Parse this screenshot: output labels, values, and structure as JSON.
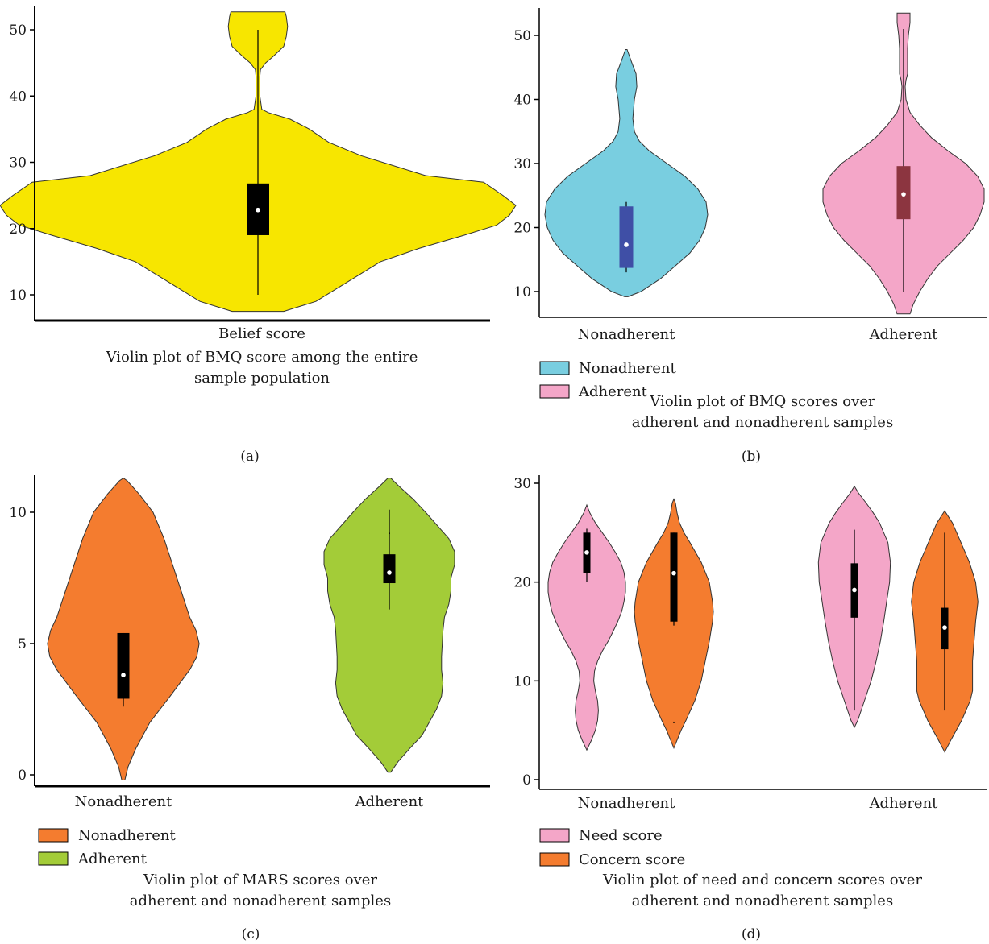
{
  "chart_data": [
    {
      "id": "a",
      "type": "violin",
      "panel_label": "(a)",
      "caption_lines": [
        "Violin plot of BMQ score among the entire",
        "sample population"
      ],
      "categories": [
        "Belief score"
      ],
      "y_ticks": [
        10,
        20,
        30,
        40,
        50
      ],
      "ylim": [
        6,
        55
      ],
      "legend": [],
      "series": [
        {
          "category": "Belief score",
          "color": "#f7e600",
          "box_color": "#000000",
          "profile": [
            [
              7.5,
              0.2
            ],
            [
              9,
              0.45
            ],
            [
              12,
              0.7
            ],
            [
              15,
              0.95
            ],
            [
              17,
              1.25
            ],
            [
              19,
              1.6
            ],
            [
              20.5,
              1.85
            ],
            [
              22,
              1.95
            ],
            [
              23.5,
              2.0
            ],
            [
              25,
              1.9
            ],
            [
              27,
              1.75
            ],
            [
              28,
              1.3
            ],
            [
              29.5,
              1.05
            ],
            [
              31,
              0.8
            ],
            [
              33,
              0.55
            ],
            [
              35,
              0.4
            ],
            [
              36.5,
              0.25
            ],
            [
              37.5,
              0.08
            ],
            [
              38,
              0.03
            ],
            [
              40,
              0.015
            ],
            [
              43,
              0.015
            ],
            [
              44,
              0.02
            ],
            [
              45,
              0.06
            ],
            [
              46,
              0.12
            ],
            [
              47.5,
              0.2
            ],
            [
              49,
              0.22
            ],
            [
              50.5,
              0.23
            ],
            [
              52,
              0.22
            ],
            [
              52.7,
              0.21
            ]
          ],
          "whisker": [
            10,
            50
          ],
          "q1": 19,
          "q3": 26.8,
          "median": 22.8,
          "outliers": []
        }
      ]
    },
    {
      "id": "b",
      "type": "violin",
      "panel_label": "(b)",
      "caption_lines": [
        "Violin plot of BMQ scores over",
        "adherent and nonadherent samples"
      ],
      "categories": [
        "Nonadherent",
        "Adherent"
      ],
      "y_ticks": [
        10,
        20,
        30,
        40,
        50
      ],
      "ylim": [
        5,
        55
      ],
      "legend": [
        {
          "label": "Nonadherent",
          "color": "#79cee0"
        },
        {
          "label": "Adherent",
          "color": "#f4a6c8"
        }
      ],
      "series": [
        {
          "category": "Nonadherent",
          "color": "#79cee0",
          "box_color": "#3f4fa6",
          "profile": [
            [
              9.2,
              0.02
            ],
            [
              10,
              0.18
            ],
            [
              12,
              0.42
            ],
            [
              14,
              0.6
            ],
            [
              16,
              0.78
            ],
            [
              18,
              0.9
            ],
            [
              20,
              0.97
            ],
            [
              22,
              1.0
            ],
            [
              24,
              0.98
            ],
            [
              26,
              0.88
            ],
            [
              28,
              0.72
            ],
            [
              30,
              0.5
            ],
            [
              32,
              0.28
            ],
            [
              33.5,
              0.16
            ],
            [
              35,
              0.1
            ],
            [
              37,
              0.08
            ],
            [
              40,
              0.1
            ],
            [
              42,
              0.13
            ],
            [
              44,
              0.12
            ],
            [
              46,
              0.06
            ],
            [
              47.8,
              0.01
            ]
          ],
          "whisker": [
            13,
            24
          ],
          "q1": 13.7,
          "q3": 23.3,
          "median": 17.3,
          "outliers": []
        },
        {
          "category": "Adherent",
          "color": "#f4a6c8",
          "box_color": "#8c3540",
          "profile": [
            [
              6.5,
              0.08
            ],
            [
              8,
              0.12
            ],
            [
              10,
              0.2
            ],
            [
              12,
              0.3
            ],
            [
              14,
              0.42
            ],
            [
              16,
              0.58
            ],
            [
              18,
              0.74
            ],
            [
              20,
              0.87
            ],
            [
              22,
              0.95
            ],
            [
              24,
              1.0
            ],
            [
              26,
              1.0
            ],
            [
              28,
              0.92
            ],
            [
              30,
              0.77
            ],
            [
              32,
              0.55
            ],
            [
              34,
              0.35
            ],
            [
              36,
              0.2
            ],
            [
              38,
              0.08
            ],
            [
              40,
              0.03
            ],
            [
              42,
              0.02
            ],
            [
              43,
              0.03
            ],
            [
              44,
              0.05
            ],
            [
              46,
              0.05
            ],
            [
              48,
              0.05
            ],
            [
              50,
              0.06
            ],
            [
              52,
              0.08
            ],
            [
              53.5,
              0.08
            ]
          ],
          "whisker": [
            10,
            51
          ],
          "q1": 21.3,
          "q3": 29.6,
          "median": 25.2,
          "outliers": []
        }
      ]
    },
    {
      "id": "c",
      "type": "violin",
      "panel_label": "(c)",
      "caption_lines": [
        "Violin plot of MARS scores over",
        "adherent and nonadherent samples"
      ],
      "categories": [
        "Nonadherent",
        "Adherent"
      ],
      "y_ticks": [
        0,
        5,
        10
      ],
      "ylim": [
        -0.3,
        11.6
      ],
      "legend": [
        {
          "label": "Nonadherent",
          "color": "#f47c2f"
        },
        {
          "label": "Adherent",
          "color": "#a3cc38"
        }
      ],
      "series": [
        {
          "category": "Nonadherent",
          "color": "#f47c2f",
          "box_color": "#000000",
          "profile": [
            [
              -0.2,
              0.02
            ],
            [
              0.3,
              0.06
            ],
            [
              1,
              0.16
            ],
            [
              2,
              0.34
            ],
            [
              3,
              0.6
            ],
            [
              4,
              0.85
            ],
            [
              4.5,
              0.94
            ],
            [
              5,
              0.97
            ],
            [
              5.5,
              0.93
            ],
            [
              6,
              0.85
            ],
            [
              7,
              0.74
            ],
            [
              8,
              0.63
            ],
            [
              9,
              0.52
            ],
            [
              10,
              0.38
            ],
            [
              10.7,
              0.2
            ],
            [
              11.2,
              0.05
            ],
            [
              11.3,
              0.0
            ]
          ],
          "whisker": [
            2.6,
            5.4
          ],
          "q1": 2.9,
          "q3": 5.4,
          "median": 3.8,
          "outliers": []
        },
        {
          "category": "Adherent",
          "color": "#a3cc38",
          "box_color": "#000000",
          "profile": [
            [
              0.1,
              0.02
            ],
            [
              0.5,
              0.12
            ],
            [
              1,
              0.28
            ],
            [
              1.5,
              0.45
            ],
            [
              2,
              0.55
            ],
            [
              2.5,
              0.65
            ],
            [
              3,
              0.72
            ],
            [
              3.5,
              0.74
            ],
            [
              4,
              0.72
            ],
            [
              4.5,
              0.72
            ],
            [
              5,
              0.73
            ],
            [
              5.5,
              0.74
            ],
            [
              6,
              0.76
            ],
            [
              6.5,
              0.82
            ],
            [
              7,
              0.85
            ],
            [
              7.5,
              0.85
            ],
            [
              8,
              0.9
            ],
            [
              8.5,
              0.9
            ],
            [
              9,
              0.82
            ],
            [
              9.5,
              0.66
            ],
            [
              10,
              0.5
            ],
            [
              10.5,
              0.33
            ],
            [
              11,
              0.13
            ],
            [
              11.3,
              0.02
            ]
          ],
          "whisker": [
            6.3,
            10.1
          ],
          "q1": 7.3,
          "q3": 8.4,
          "median": 7.7,
          "outliers": [
            9.2
          ]
        }
      ]
    },
    {
      "id": "d",
      "type": "violin",
      "panel_label": "(d)",
      "caption_lines": [
        "Violin plot of need and concern scores over",
        "adherent and nonadherent samples"
      ],
      "categories": [
        "Nonadherent",
        "Adherent"
      ],
      "y_ticks": [
        0,
        10,
        20,
        30
      ],
      "ylim": [
        -0.8,
        31
      ],
      "legend": [
        {
          "label": "Need score",
          "color": "#f4a6c8"
        },
        {
          "label": "Concern score",
          "color": "#f47c2f"
        }
      ],
      "series": [
        {
          "category": "Nonadherent",
          "group": "Need score",
          "color": "#f4a6c8",
          "box_color": "#000000",
          "profile": [
            [
              3,
              0.0
            ],
            [
              4,
              0.12
            ],
            [
              5,
              0.22
            ],
            [
              6,
              0.28
            ],
            [
              7,
              0.3
            ],
            [
              8,
              0.28
            ],
            [
              9,
              0.22
            ],
            [
              10,
              0.18
            ],
            [
              11,
              0.2
            ],
            [
              12,
              0.28
            ],
            [
              13,
              0.4
            ],
            [
              14,
              0.55
            ],
            [
              15,
              0.68
            ],
            [
              16,
              0.8
            ],
            [
              17,
              0.9
            ],
            [
              18,
              0.96
            ],
            [
              19,
              1.0
            ],
            [
              20,
              1.0
            ],
            [
              21,
              0.96
            ],
            [
              22,
              0.88
            ],
            [
              23,
              0.74
            ],
            [
              24,
              0.58
            ],
            [
              25,
              0.4
            ],
            [
              26,
              0.22
            ],
            [
              27,
              0.08
            ],
            [
              27.8,
              0.0
            ]
          ],
          "whisker": [
            20,
            25.4
          ],
          "q1": 20.9,
          "q3": 25.0,
          "median": 23.0,
          "outliers": []
        },
        {
          "category": "Nonadherent",
          "group": "Concern score",
          "color": "#f47c2f",
          "box_color": "#000000",
          "profile": [
            [
              3.2,
              0.0
            ],
            [
              4,
              0.08
            ],
            [
              5,
              0.18
            ],
            [
              6,
              0.3
            ],
            [
              8,
              0.52
            ],
            [
              10,
              0.68
            ],
            [
              12,
              0.78
            ],
            [
              14,
              0.88
            ],
            [
              16,
              0.96
            ],
            [
              17,
              0.98
            ],
            [
              18,
              0.96
            ],
            [
              20,
              0.88
            ],
            [
              22,
              0.68
            ],
            [
              24,
              0.4
            ],
            [
              25,
              0.25
            ],
            [
              26,
              0.14
            ],
            [
              27,
              0.08
            ],
            [
              28,
              0.04
            ],
            [
              28.4,
              0.0
            ]
          ],
          "whisker": [
            15.6,
            25.0
          ],
          "q1": 16.0,
          "q3": 25.0,
          "median": 20.9,
          "outliers": [
            5.8
          ]
        },
        {
          "category": "Adherent",
          "group": "Need score",
          "color": "#f4a6c8",
          "box_color": "#000000",
          "profile": [
            [
              5.3,
              0.0
            ],
            [
              6,
              0.08
            ],
            [
              8,
              0.24
            ],
            [
              10,
              0.4
            ],
            [
              12,
              0.52
            ],
            [
              14,
              0.62
            ],
            [
              16,
              0.7
            ],
            [
              18,
              0.77
            ],
            [
              20,
              0.84
            ],
            [
              22,
              0.86
            ],
            [
              24,
              0.8
            ],
            [
              26,
              0.6
            ],
            [
              27,
              0.45
            ],
            [
              28,
              0.28
            ],
            [
              29,
              0.1
            ],
            [
              29.7,
              0.0
            ]
          ],
          "whisker": [
            7,
            25.3
          ],
          "q1": 16.4,
          "q3": 21.9,
          "median": 19.2,
          "outliers": []
        },
        {
          "category": "Adherent",
          "group": "Concern score",
          "color": "#f47c2f",
          "box_color": "#000000",
          "profile": [
            [
              2.8,
              0.0
            ],
            [
              4,
              0.16
            ],
            [
              6,
              0.44
            ],
            [
              8,
              0.66
            ],
            [
              9,
              0.72
            ],
            [
              10,
              0.72
            ],
            [
              12,
              0.72
            ],
            [
              14,
              0.76
            ],
            [
              16,
              0.8
            ],
            [
              18,
              0.86
            ],
            [
              20,
              0.8
            ],
            [
              22,
              0.64
            ],
            [
              24,
              0.42
            ],
            [
              26,
              0.2
            ],
            [
              27.2,
              0.0
            ]
          ],
          "whisker": [
            7,
            25.0
          ],
          "q1": 13.2,
          "q3": 17.4,
          "median": 15.4,
          "outliers": []
        }
      ]
    }
  ]
}
